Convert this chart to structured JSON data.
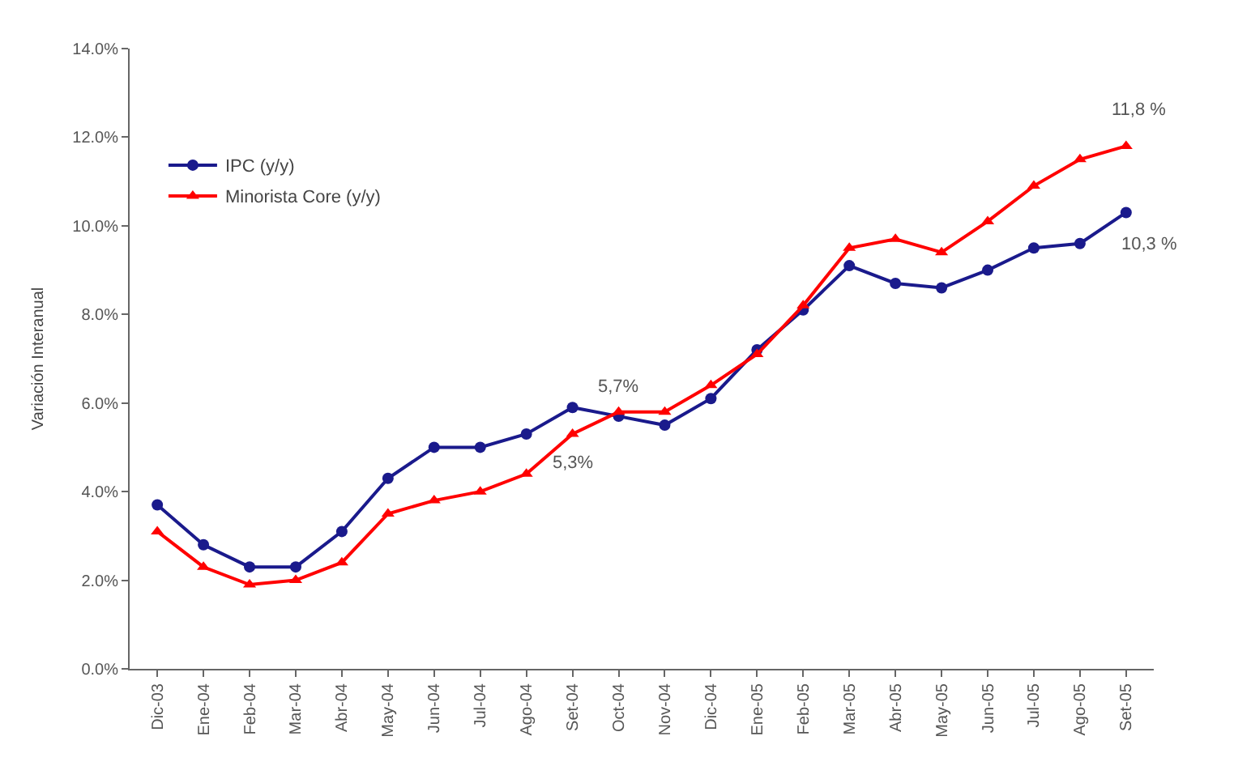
{
  "chart_data": {
    "type": "line",
    "ylabel": "Variación Interanual",
    "categories": [
      "Dic-03",
      "Ene-04",
      "Feb-04",
      "Mar-04",
      "Abr-04",
      "May-04",
      "Jun-04",
      "Jul-04",
      "Ago-04",
      "Set-04",
      "Oct-04",
      "Nov-04",
      "Dic-04",
      "Ene-05",
      "Feb-05",
      "Mar-05",
      "Abr-05",
      "May-05",
      "Jun-05",
      "Jul-05",
      "Ago-05",
      "Set-05"
    ],
    "series": [
      {
        "name": "IPC (y/y)",
        "color": "#1a1a8c",
        "marker": "circle",
        "values": [
          3.7,
          2.8,
          2.3,
          2.3,
          3.1,
          4.3,
          5.0,
          5.0,
          5.3,
          5.9,
          5.7,
          5.5,
          6.1,
          7.2,
          8.1,
          9.1,
          8.7,
          8.6,
          9.0,
          9.5,
          9.6,
          10.3
        ]
      },
      {
        "name": "Minorista Core (y/y)",
        "color": "#ff0000",
        "marker": "triangle",
        "values": [
          3.1,
          2.3,
          1.9,
          2.0,
          2.4,
          3.5,
          3.8,
          4.0,
          4.4,
          5.3,
          5.8,
          5.8,
          6.4,
          7.1,
          8.2,
          9.5,
          9.7,
          9.4,
          10.1,
          10.9,
          11.5,
          11.8
        ]
      }
    ],
    "ylim": [
      0,
      14
    ],
    "yticks": [
      {
        "value": 0,
        "label": "0.0%"
      },
      {
        "value": 2,
        "label": "2.0%"
      },
      {
        "value": 4,
        "label": "4.0%"
      },
      {
        "value": 6,
        "label": "6.0%"
      },
      {
        "value": 8,
        "label": "8.0%"
      },
      {
        "value": 10,
        "label": "10.0%"
      },
      {
        "value": 12,
        "label": "12.0%"
      },
      {
        "value": 14,
        "label": "14.0%"
      }
    ],
    "annotations": [
      {
        "text": "5,7%",
        "x": "Oct-04",
        "y": 5.7
      },
      {
        "text": "5,3%",
        "x": "Set-04",
        "y": 5.3
      },
      {
        "text": "11,8 %",
        "x": "Set-05",
        "y": 11.8
      },
      {
        "text": "10,3 %",
        "x": "Set-05",
        "y": 10.3
      }
    ],
    "legend": "top left",
    "line_style": "solid"
  }
}
